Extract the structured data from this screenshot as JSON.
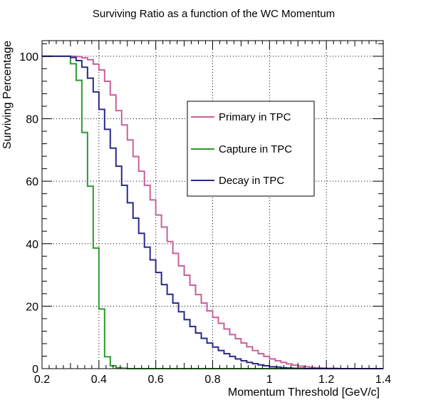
{
  "chart_data": {
    "type": "line",
    "step": true,
    "title": "Surviving Ratio as a function of the WC Momentum",
    "xlabel": "Momentum Threshold [GeV/c]",
    "ylabel": "Surviving Percentage",
    "xlim": [
      0.2,
      1.4
    ],
    "ylim": [
      0,
      105
    ],
    "x_ticks": [
      "0.2",
      "0.4",
      "0.6",
      "0.8",
      "1",
      "1.2",
      "1.4"
    ],
    "y_ticks": [
      "0",
      "20",
      "40",
      "60",
      "80",
      "100"
    ],
    "grid": true,
    "legend_position": "center-right",
    "bin_width": 0.02,
    "x_start": 0.2,
    "series": [
      {
        "name": "Primary in TPC",
        "color": "#c8609a",
        "values": [
          100,
          100,
          100,
          100,
          100,
          100,
          99.9,
          99.5,
          98.9,
          97.5,
          95.6,
          92.0,
          87.6,
          82.6,
          78.0,
          73.2,
          67.9,
          63.2,
          58.7,
          54.0,
          49.2,
          45.3,
          40.7,
          36.9,
          32.9,
          29.9,
          26.7,
          23.7,
          21.0,
          18.5,
          16.4,
          14.5,
          12.7,
          10.9,
          9.6,
          8.2,
          7.0,
          5.8,
          4.8,
          3.9,
          3.1,
          2.5,
          2.0,
          1.5,
          1.1,
          0.8,
          0.6,
          0.4,
          0.3,
          0.2,
          0.1,
          0.1,
          0,
          0,
          0,
          0,
          0,
          0,
          0,
          0
        ]
      },
      {
        "name": "Capture in TPC",
        "color": "#2e9a2e",
        "values": [
          100,
          100,
          100,
          100,
          100,
          97.6,
          92.3,
          75.6,
          58.4,
          38.6,
          19.1,
          3.8,
          0.9,
          0.3,
          0.1,
          0.0,
          0,
          0,
          0,
          0,
          0,
          0,
          0,
          0,
          0,
          0,
          0,
          0,
          0,
          0,
          0,
          0,
          0,
          0,
          0,
          0,
          0,
          0,
          0,
          0,
          0,
          0,
          0,
          0,
          0,
          0,
          0,
          0,
          0,
          0,
          0,
          0,
          0,
          0,
          0,
          0,
          0,
          0,
          0,
          0
        ]
      },
      {
        "name": "Decay in TPC",
        "color": "#2a2a8a",
        "values": [
          100,
          100,
          100,
          100,
          100,
          99.6,
          98.6,
          96.5,
          93.0,
          88.6,
          83.0,
          76.6,
          70.6,
          64.8,
          58.7,
          53.1,
          48.2,
          43.3,
          38.9,
          34.8,
          30.8,
          26.9,
          23.8,
          21.0,
          18.2,
          15.7,
          13.5,
          11.4,
          9.7,
          8.2,
          6.9,
          5.8,
          4.8,
          3.9,
          3.1,
          2.5,
          2.0,
          1.6,
          1.2,
          0.9,
          0.6,
          0.5,
          0.3,
          0.2,
          0.1,
          0.1,
          0,
          0,
          0,
          0,
          0,
          0,
          0,
          0,
          0,
          0,
          0,
          0,
          0,
          0
        ]
      }
    ]
  }
}
